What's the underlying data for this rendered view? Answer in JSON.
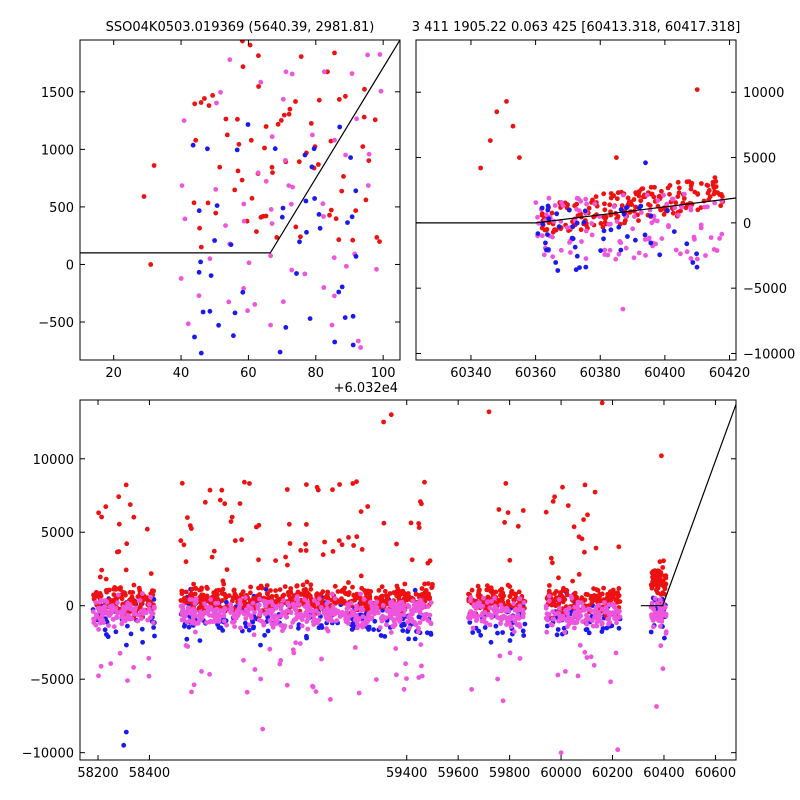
{
  "titles": {
    "left": "SSO04K0503.019369 (5640.39, 2981.81)",
    "right": "3 411 1905.22 0.063 425 [60413.318, 60417.318]"
  },
  "colors": {
    "red": "#ee1111",
    "blue": "#1a1aee",
    "magenta": "#ee55dd",
    "line": "#000000"
  },
  "chart_data": [
    {
      "id": "zoom",
      "type": "scatter",
      "x_offset_label": "+6.032e4",
      "xlim": [
        10,
        105
      ],
      "ylim": [
        -830,
        1950
      ],
      "xticks": [
        20,
        40,
        60,
        80,
        100
      ],
      "yticks": [
        -500,
        0,
        500,
        1000,
        1500
      ],
      "ytick_side": "left",
      "model_line": [
        [
          10,
          100
        ],
        [
          66.5,
          100
        ],
        [
          105,
          1950
        ]
      ],
      "clusters": [
        {
          "color": "red",
          "n": 75,
          "x": [
            42,
            100
          ],
          "y": [
            150,
            1950
          ],
          "seed": 11
        },
        {
          "color": "magenta",
          "n": 60,
          "x": [
            40,
            100
          ],
          "y": [
            -820,
            1900
          ],
          "seed": 12
        },
        {
          "color": "blue",
          "n": 45,
          "x": [
            43,
            92
          ],
          "y": [
            -780,
            1300
          ],
          "seed": 13
        }
      ],
      "points": [
        {
          "x": 29,
          "y": 590,
          "color": "red"
        },
        {
          "x": 31,
          "y": 0,
          "color": "red"
        },
        {
          "x": 32,
          "y": 860,
          "color": "red"
        },
        {
          "x": 46,
          "y": -770,
          "color": "blue"
        },
        {
          "x": 44,
          "y": -630,
          "color": "blue"
        }
      ]
    },
    {
      "id": "recent",
      "type": "scatter",
      "xlim": [
        60323,
        60422
      ],
      "ylim": [
        -10500,
        14000
      ],
      "xticks": [
        60340,
        60360,
        60380,
        60400,
        60420
      ],
      "yticks": [
        -10000,
        -5000,
        0,
        5000,
        10000
      ],
      "ytick_side": "right",
      "model_line": [
        [
          60323,
          0
        ],
        [
          60360,
          0
        ],
        [
          60422,
          1900
        ]
      ],
      "clusters": [
        {
          "color": "red",
          "n": 200,
          "x": [
            60362,
            60418
          ],
          "y": [
            -500,
            4500
          ],
          "seed": 21
        },
        {
          "color": "magenta",
          "n": 110,
          "x": [
            60360,
            60418
          ],
          "y": [
            -2800,
            2200
          ],
          "seed": 22
        },
        {
          "color": "blue",
          "n": 50,
          "x": [
            60360,
            60410
          ],
          "y": [
            -3800,
            1500
          ],
          "seed": 23
        }
      ],
      "points": [
        {
          "x": 60351,
          "y": 9300,
          "color": "red"
        },
        {
          "x": 60348,
          "y": 8500,
          "color": "red"
        },
        {
          "x": 60346,
          "y": 6300,
          "color": "red"
        },
        {
          "x": 60353,
          "y": 7400,
          "color": "red"
        },
        {
          "x": 60355,
          "y": 5000,
          "color": "red"
        },
        {
          "x": 60343,
          "y": 4200,
          "color": "red"
        },
        {
          "x": 60410,
          "y": 10200,
          "color": "red"
        },
        {
          "x": 60394,
          "y": 4600,
          "color": "blue"
        },
        {
          "x": 60385,
          "y": 5000,
          "color": "red"
        },
        {
          "x": 60387,
          "y": -6600,
          "color": "magenta"
        }
      ]
    },
    {
      "id": "full",
      "type": "scatter",
      "xlim": [
        58130,
        60680
      ],
      "ylim": [
        -10500,
        14000
      ],
      "xticks": [
        58200,
        58400,
        59400,
        59600,
        59800,
        60000,
        60200,
        60400,
        60600
      ],
      "yticks": [
        -10000,
        -5000,
        0,
        5000,
        10000
      ],
      "ytick_side": "left",
      "model_line": [
        [
          60310,
          0
        ],
        [
          60395,
          0
        ],
        [
          60680,
          13700
        ]
      ],
      "segments": [
        {
          "x": [
            58180,
            58420
          ],
          "seed": 31
        },
        {
          "x": [
            58520,
            59500
          ],
          "seed": 32
        },
        {
          "x": [
            59640,
            59860
          ],
          "seed": 33
        },
        {
          "x": [
            59940,
            60230
          ],
          "seed": 34
        },
        {
          "x": [
            60350,
            60410
          ],
          "seed": 35
        }
      ],
      "points": [
        {
          "x": 58300,
          "y": -9500,
          "color": "blue"
        },
        {
          "x": 58310,
          "y": -8600,
          "color": "blue"
        },
        {
          "x": 59340,
          "y": 13000,
          "color": "red"
        },
        {
          "x": 59310,
          "y": 12500,
          "color": "red"
        },
        {
          "x": 59720,
          "y": 13200,
          "color": "red"
        },
        {
          "x": 60160,
          "y": 13800,
          "color": "red"
        },
        {
          "x": 60390,
          "y": 10200,
          "color": "red"
        },
        {
          "x": 60000,
          "y": -10000,
          "color": "magenta"
        },
        {
          "x": 58840,
          "y": -8400,
          "color": "magenta"
        },
        {
          "x": 60220,
          "y": -9800,
          "color": "magenta"
        }
      ]
    }
  ]
}
